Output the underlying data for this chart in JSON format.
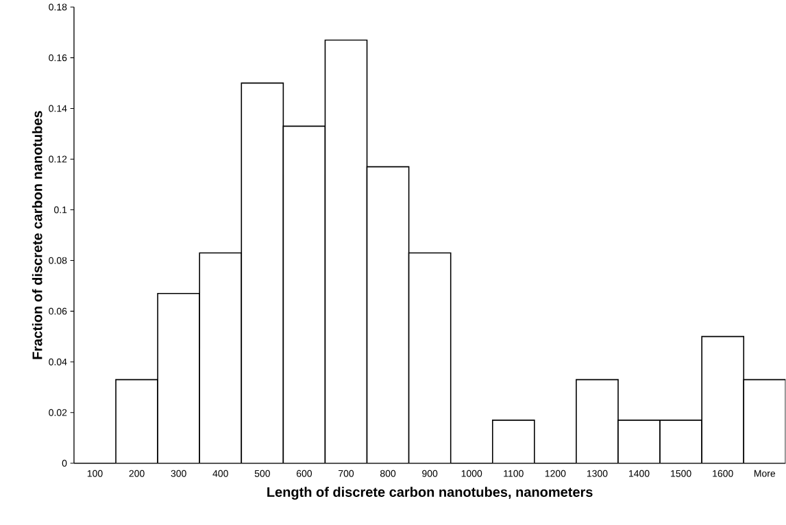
{
  "chart_data": {
    "type": "bar",
    "xlabel": "Length of discrete carbon nanotubes, nanometers",
    "ylabel": "Fraction of discrete carbon nanotubes",
    "categories": [
      "100",
      "200",
      "300",
      "400",
      "500",
      "600",
      "700",
      "800",
      "900",
      "1000",
      "1100",
      "1200",
      "1300",
      "1400",
      "1500",
      "1600",
      "More"
    ],
    "values": [
      0,
      0.033,
      0.067,
      0.083,
      0.15,
      0.133,
      0.167,
      0.117,
      0.083,
      0,
      0.017,
      0,
      0.033,
      0.017,
      0.017,
      0.05,
      0.033
    ],
    "color": "#ffffff",
    "ylim": [
      0,
      0.18
    ],
    "yticks": [
      0,
      0.02,
      0.04,
      0.06,
      0.08,
      0.1,
      0.12,
      0.14,
      0.16,
      0.18
    ]
  }
}
